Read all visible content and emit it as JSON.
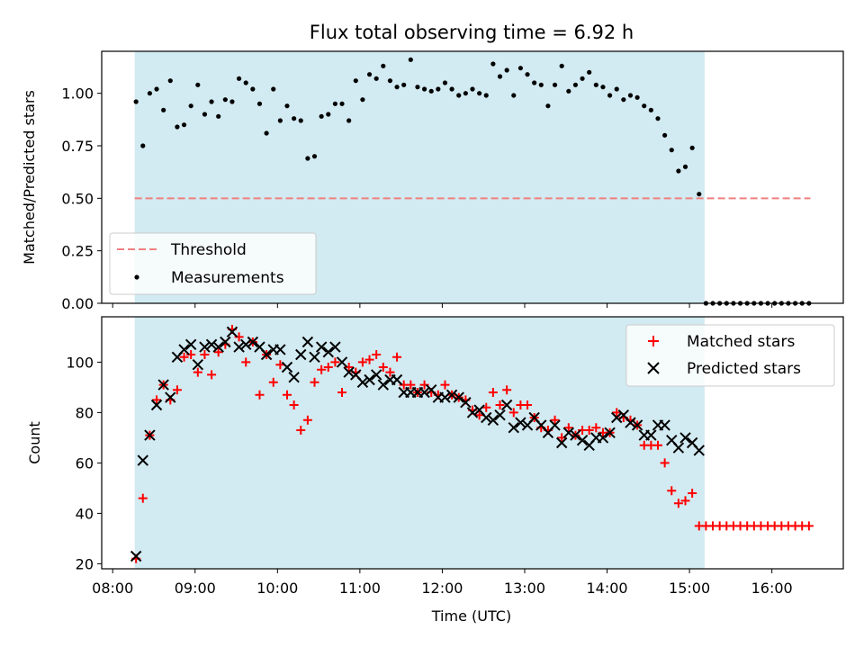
{
  "figure": {
    "title": "Flux total observing time = 6.92 h",
    "xlabel": "Time (UTC)"
  },
  "colors": {
    "shade": "#add8e6",
    "threshold": "#f08080",
    "matched": "#ff0000",
    "predicted": "#000000",
    "measurements": "#000000"
  },
  "chart_data": [
    {
      "type": "scatter",
      "panel": "top",
      "ylabel": "Matched/Predicted stars",
      "xlim": [
        "07:52",
        "16:52"
      ],
      "ylim": [
        0,
        1.2
      ],
      "yticks": [
        "0.00",
        "0.25",
        "0.50",
        "0.75",
        "1.00"
      ],
      "xtick_labels_visible": false,
      "shaded_interval": [
        "08:16",
        "15:11"
      ],
      "legend": [
        "Threshold",
        "Measurements"
      ],
      "legend_position": "lower-left",
      "threshold": {
        "name": "Threshold",
        "y": 0.5,
        "x_range": [
          "08:16",
          "16:28"
        ]
      },
      "series": [
        {
          "name": "Measurements",
          "x": [
            "08:17",
            "08:22",
            "08:27",
            "08:32",
            "08:37",
            "08:42",
            "08:47",
            "08:52",
            "08:57",
            "09:02",
            "09:07",
            "09:12",
            "09:17",
            "09:22",
            "09:27",
            "09:32",
            "09:37",
            "09:42",
            "09:47",
            "09:52",
            "09:57",
            "10:02",
            "10:07",
            "10:12",
            "10:17",
            "10:22",
            "10:27",
            "10:32",
            "10:37",
            "10:42",
            "10:47",
            "10:52",
            "10:57",
            "11:02",
            "11:07",
            "11:12",
            "11:17",
            "11:22",
            "11:27",
            "11:32",
            "11:37",
            "11:42",
            "11:47",
            "11:52",
            "11:57",
            "12:02",
            "12:07",
            "12:12",
            "12:17",
            "12:22",
            "12:27",
            "12:32",
            "12:37",
            "12:42",
            "12:47",
            "12:52",
            "12:57",
            "13:02",
            "13:07",
            "13:12",
            "13:17",
            "13:22",
            "13:27",
            "13:32",
            "13:37",
            "13:42",
            "13:47",
            "13:52",
            "13:57",
            "14:02",
            "14:07",
            "14:12",
            "14:17",
            "14:22",
            "14:27",
            "14:32",
            "14:37",
            "14:42",
            "14:47",
            "14:52",
            "14:57",
            "15:02",
            "15:07",
            "15:12",
            "15:17",
            "15:22",
            "15:27",
            "15:32",
            "15:37",
            "15:42",
            "15:47",
            "15:52",
            "15:57",
            "16:02",
            "16:07",
            "16:12",
            "16:17",
            "16:22",
            "16:27"
          ],
          "y": [
            0.96,
            0.75,
            1.0,
            1.02,
            0.92,
            1.06,
            0.84,
            0.85,
            0.94,
            1.04,
            0.9,
            0.96,
            0.89,
            0.97,
            0.96,
            1.07,
            1.05,
            1.02,
            0.95,
            0.81,
            1.02,
            0.87,
            0.94,
            0.88,
            0.87,
            0.69,
            0.7,
            0.89,
            0.9,
            0.95,
            0.95,
            0.87,
            1.06,
            0.97,
            1.09,
            1.07,
            1.13,
            1.06,
            1.03,
            1.04,
            1.16,
            1.03,
            1.02,
            1.01,
            1.02,
            1.05,
            1.02,
            0.99,
            1.0,
            1.02,
            1.0,
            0.99,
            1.14,
            1.08,
            1.11,
            0.99,
            1.12,
            1.09,
            1.05,
            1.04,
            0.94,
            1.04,
            1.13,
            1.01,
            1.04,
            1.07,
            1.1,
            1.04,
            1.03,
            0.99,
            1.02,
            0.97,
            0.99,
            0.98,
            0.94,
            0.92,
            0.88,
            0.8,
            0.73,
            0.63,
            0.65,
            0.74,
            0.52,
            0.0,
            0.0,
            0.0,
            0.0,
            0.0,
            0.0,
            0.0,
            0.0,
            0.0,
            0.0,
            0.0,
            0.0,
            0.0,
            0.0,
            0.0,
            0.0
          ]
        }
      ]
    },
    {
      "type": "scatter",
      "panel": "bottom",
      "ylabel": "Count",
      "xlim": [
        "07:52",
        "16:52"
      ],
      "ylim": [
        18,
        118
      ],
      "yticks": [
        "20",
        "40",
        "60",
        "80",
        "100"
      ],
      "xticks": [
        "08:00",
        "09:00",
        "10:00",
        "11:00",
        "12:00",
        "13:00",
        "14:00",
        "15:00",
        "16:00"
      ],
      "shaded_interval": [
        "08:16",
        "15:11"
      ],
      "legend": [
        "Matched stars",
        "Predicted stars"
      ],
      "legend_position": "top-right",
      "series": [
        {
          "name": "Matched stars",
          "marker": "+",
          "x": [
            "08:17",
            "08:22",
            "08:27",
            "08:32",
            "08:37",
            "08:42",
            "08:47",
            "08:52",
            "08:57",
            "09:02",
            "09:07",
            "09:12",
            "09:17",
            "09:22",
            "09:27",
            "09:32",
            "09:37",
            "09:42",
            "09:47",
            "09:52",
            "09:57",
            "10:02",
            "10:07",
            "10:12",
            "10:17",
            "10:22",
            "10:27",
            "10:32",
            "10:37",
            "10:42",
            "10:47",
            "10:52",
            "10:57",
            "11:02",
            "11:07",
            "11:12",
            "11:17",
            "11:22",
            "11:27",
            "11:32",
            "11:37",
            "11:42",
            "11:47",
            "11:52",
            "11:57",
            "12:02",
            "12:07",
            "12:12",
            "12:17",
            "12:22",
            "12:27",
            "12:32",
            "12:37",
            "12:42",
            "12:47",
            "12:52",
            "12:57",
            "13:02",
            "13:07",
            "13:12",
            "13:17",
            "13:22",
            "13:27",
            "13:32",
            "13:37",
            "13:42",
            "13:47",
            "13:52",
            "13:57",
            "14:02",
            "14:07",
            "14:12",
            "14:17",
            "14:22",
            "14:27",
            "14:32",
            "14:37",
            "14:42",
            "14:47",
            "14:52",
            "14:57",
            "15:02",
            "15:07",
            "15:12",
            "15:17",
            "15:22",
            "15:27",
            "15:32",
            "15:37",
            "15:42",
            "15:47",
            "15:52",
            "15:57",
            "16:02",
            "16:07",
            "16:12",
            "16:17",
            "16:22",
            "16:27"
          ],
          "y": [
            22,
            46,
            71,
            85,
            91,
            85,
            89,
            102,
            103,
            96,
            103,
            95,
            104,
            107,
            113,
            110,
            100,
            108,
            87,
            103,
            92,
            99,
            87,
            83,
            73,
            77,
            92,
            97,
            98,
            100,
            88,
            98,
            96,
            100,
            101,
            103,
            98,
            96,
            102,
            91,
            91,
            88,
            91,
            88,
            87,
            91,
            87,
            86,
            85,
            81,
            79,
            82,
            88,
            83,
            89,
            80,
            83,
            83,
            78,
            74,
            73,
            77,
            70,
            74,
            71,
            73,
            73,
            74,
            72,
            72,
            80,
            78,
            77,
            75,
            67,
            67,
            67,
            60,
            49,
            44,
            45,
            48,
            35,
            35,
            35,
            35,
            35,
            35,
            35,
            35,
            35,
            35,
            35,
            35,
            35,
            35,
            35,
            35,
            35
          ]
        },
        {
          "name": "Predicted stars",
          "marker": "x",
          "x": [
            "08:17",
            "08:22",
            "08:27",
            "08:32",
            "08:37",
            "08:42",
            "08:47",
            "08:52",
            "08:57",
            "09:02",
            "09:07",
            "09:12",
            "09:17",
            "09:22",
            "09:27",
            "09:32",
            "09:37",
            "09:42",
            "09:47",
            "09:52",
            "09:57",
            "10:02",
            "10:07",
            "10:12",
            "10:17",
            "10:22",
            "10:27",
            "10:32",
            "10:37",
            "10:42",
            "10:47",
            "10:52",
            "10:57",
            "11:02",
            "11:07",
            "11:12",
            "11:17",
            "11:22",
            "11:27",
            "11:32",
            "11:37",
            "11:42",
            "11:47",
            "11:52",
            "11:57",
            "12:02",
            "12:07",
            "12:12",
            "12:17",
            "12:22",
            "12:27",
            "12:32",
            "12:37",
            "12:42",
            "12:47",
            "12:52",
            "12:57",
            "13:02",
            "13:07",
            "13:12",
            "13:17",
            "13:22",
            "13:27",
            "13:32",
            "13:37",
            "13:42",
            "13:47",
            "13:52",
            "13:57",
            "14:02",
            "14:07",
            "14:12",
            "14:17",
            "14:22",
            "14:27",
            "14:32",
            "14:37",
            "14:42",
            "14:47",
            "14:52",
            "14:57",
            "15:02",
            "15:07"
          ],
          "y": [
            23,
            61,
            71,
            83,
            91,
            86,
            102,
            105,
            107,
            99,
            106,
            107,
            106,
            108,
            112,
            106,
            107,
            108,
            106,
            103,
            105,
            105,
            98,
            94,
            103,
            108,
            102,
            106,
            104,
            106,
            100,
            96,
            95,
            92,
            93,
            95,
            91,
            93,
            93,
            88,
            88,
            88,
            88,
            89,
            86,
            86,
            87,
            86,
            84,
            80,
            81,
            78,
            77,
            79,
            83,
            74,
            76,
            75,
            78,
            75,
            72,
            75,
            68,
            72,
            71,
            69,
            67,
            70,
            70,
            72,
            78,
            79,
            76,
            75,
            71,
            71,
            75,
            75,
            69,
            66,
            70,
            68,
            65
          ]
        }
      ]
    }
  ]
}
